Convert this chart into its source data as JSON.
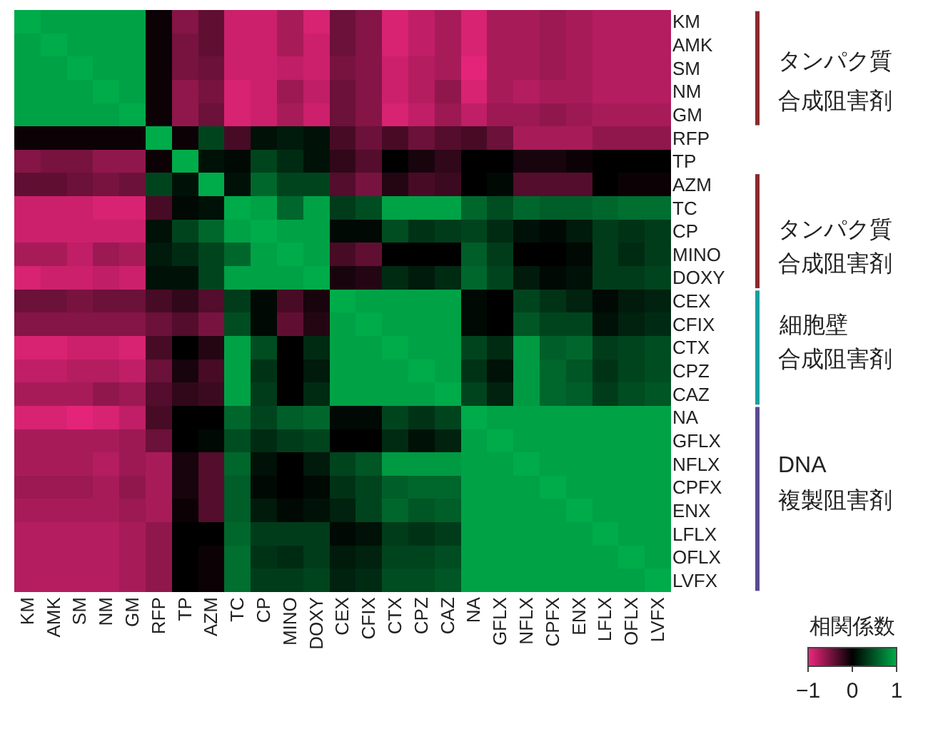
{
  "chart_data": {
    "type": "heatmap",
    "clabel": "相関係数",
    "categories": [
      "KM",
      "AMK",
      "SM",
      "NM",
      "GM",
      "RFP",
      "TP",
      "AZM",
      "TC",
      "CP",
      "MINO",
      "DOXY",
      "CEX",
      "CFIX",
      "CTX",
      "CPZ",
      "CAZ",
      "NA",
      "GFLX",
      "NFLX",
      "CPFX",
      "ENX",
      "LFLX",
      "OFLX",
      "LVFX"
    ],
    "y_categories": [
      "KM",
      "AMK",
      "SM",
      "NM",
      "GM",
      "RFP",
      "TP",
      "AZM",
      "TC",
      "CP",
      "MINO",
      "DOXY",
      "CEX",
      "CFIX",
      "CTX",
      "CPZ",
      "CAZ",
      "NA",
      "GFLX",
      "NFLX",
      "CPFX",
      "ENX",
      "LFLX",
      "OFLX",
      "LVFX"
    ],
    "cells": [
      [
        1,
        0.95,
        0.95,
        0.95,
        0.95,
        -0.05,
        -0.55,
        -0.4,
        -0.85,
        -0.85,
        -0.7,
        -0.9,
        -0.45,
        -0.55,
        -0.9,
        -0.8,
        -0.7,
        -0.9,
        -0.7,
        -0.7,
        -0.65,
        -0.7,
        -0.75,
        -0.75,
        -0.75
      ],
      [
        0.95,
        1,
        0.95,
        0.95,
        0.95,
        -0.05,
        -0.5,
        -0.4,
        -0.85,
        -0.85,
        -0.7,
        -0.85,
        -0.45,
        -0.55,
        -0.9,
        -0.8,
        -0.7,
        -0.9,
        -0.7,
        -0.7,
        -0.65,
        -0.7,
        -0.75,
        -0.75,
        -0.75
      ],
      [
        0.95,
        0.95,
        1,
        0.95,
        0.95,
        -0.05,
        -0.5,
        -0.45,
        -0.85,
        -0.85,
        -0.8,
        -0.85,
        -0.5,
        -0.55,
        -0.85,
        -0.75,
        -0.7,
        -0.95,
        -0.7,
        -0.7,
        -0.65,
        -0.7,
        -0.75,
        -0.75,
        -0.75
      ],
      [
        0.95,
        0.95,
        0.95,
        1,
        0.95,
        -0.05,
        -0.6,
        -0.5,
        -0.9,
        -0.85,
        -0.65,
        -0.8,
        -0.45,
        -0.55,
        -0.85,
        -0.75,
        -0.6,
        -0.9,
        -0.7,
        -0.75,
        -0.7,
        -0.7,
        -0.75,
        -0.75,
        -0.75
      ],
      [
        0.95,
        0.95,
        0.95,
        0.95,
        1,
        -0.05,
        -0.6,
        -0.45,
        -0.9,
        -0.85,
        -0.7,
        -0.85,
        -0.45,
        -0.55,
        -0.9,
        -0.8,
        -0.65,
        -0.8,
        -0.65,
        -0.65,
        -0.6,
        -0.65,
        -0.7,
        -0.7,
        -0.7
      ],
      [
        -0.05,
        -0.05,
        -0.05,
        -0.05,
        -0.05,
        1,
        -0.05,
        0.4,
        -0.3,
        0.1,
        0.15,
        0.1,
        -0.3,
        -0.45,
        -0.3,
        -0.45,
        -0.35,
        -0.3,
        -0.45,
        -0.7,
        -0.7,
        -0.7,
        -0.6,
        -0.6,
        -0.6
      ],
      [
        -0.55,
        -0.5,
        -0.5,
        -0.6,
        -0.6,
        -0.05,
        1,
        0.1,
        0.05,
        0.4,
        0.25,
        0.1,
        -0.2,
        -0.35,
        0,
        -0.1,
        -0.2,
        0,
        0,
        -0.1,
        -0.1,
        -0.05,
        0,
        0,
        0
      ],
      [
        -0.4,
        -0.4,
        -0.45,
        -0.5,
        -0.45,
        0.4,
        0.1,
        1,
        0.1,
        0.6,
        0.4,
        0.4,
        -0.35,
        -0.5,
        -0.15,
        -0.3,
        -0.25,
        0,
        0.05,
        -0.35,
        -0.35,
        -0.35,
        0,
        -0.05,
        -0.05
      ],
      [
        -0.85,
        -0.85,
        -0.85,
        -0.9,
        -0.9,
        -0.3,
        0.05,
        0.1,
        1,
        0.95,
        0.6,
        0.95,
        0.35,
        0.45,
        0.95,
        0.95,
        0.95,
        0.6,
        0.45,
        0.6,
        0.55,
        0.55,
        0.6,
        0.65,
        0.65
      ],
      [
        -0.85,
        -0.85,
        -0.85,
        -0.85,
        -0.85,
        0.1,
        0.4,
        0.6,
        0.95,
        1,
        0.95,
        0.95,
        0.05,
        0.05,
        0.45,
        0.3,
        0.35,
        0.4,
        0.25,
        0.1,
        0.05,
        0.15,
        0.35,
        0.3,
        0.35
      ],
      [
        -0.7,
        -0.7,
        -0.8,
        -0.65,
        -0.7,
        0.15,
        0.25,
        0.4,
        0.6,
        0.95,
        1,
        0.95,
        -0.3,
        -0.4,
        0,
        0,
        0,
        0.55,
        0.35,
        0,
        0,
        0.05,
        0.35,
        0.25,
        0.35
      ],
      [
        -0.9,
        -0.85,
        -0.85,
        -0.8,
        -0.85,
        0.1,
        0.1,
        0.4,
        0.95,
        0.95,
        0.95,
        1,
        -0.1,
        -0.15,
        0.25,
        0.15,
        0.25,
        0.6,
        0.4,
        0.15,
        0.05,
        0.1,
        0.35,
        0.35,
        0.4
      ],
      [
        -0.45,
        -0.45,
        -0.5,
        -0.45,
        -0.45,
        -0.3,
        -0.2,
        -0.35,
        0.35,
        0.05,
        -0.3,
        -0.1,
        1,
        0.95,
        0.95,
        0.95,
        0.95,
        0.05,
        0,
        0.4,
        0.3,
        0.2,
        0.05,
        0.15,
        0.2
      ],
      [
        -0.55,
        -0.55,
        -0.55,
        -0.55,
        -0.55,
        -0.45,
        -0.35,
        -0.5,
        0.45,
        0.05,
        -0.4,
        -0.15,
        0.95,
        1,
        0.95,
        0.95,
        0.95,
        0.05,
        0,
        0.5,
        0.4,
        0.4,
        0.1,
        0.2,
        0.25
      ],
      [
        -0.9,
        -0.9,
        -0.85,
        -0.85,
        -0.9,
        -0.3,
        0,
        -0.15,
        0.95,
        0.45,
        0,
        0.25,
        0.95,
        0.95,
        1,
        0.95,
        0.95,
        0.4,
        0.25,
        0.9,
        0.55,
        0.6,
        0.35,
        0.4,
        0.45
      ],
      [
        -0.8,
        -0.8,
        -0.75,
        -0.75,
        -0.8,
        -0.45,
        -0.1,
        -0.3,
        0.95,
        0.3,
        0,
        0.15,
        0.95,
        0.95,
        0.95,
        1,
        0.95,
        0.3,
        0.1,
        0.9,
        0.6,
        0.5,
        0.3,
        0.4,
        0.45
      ],
      [
        -0.7,
        -0.7,
        -0.7,
        -0.6,
        -0.65,
        -0.35,
        -0.2,
        -0.25,
        0.95,
        0.35,
        0,
        0.25,
        0.95,
        0.95,
        0.95,
        0.95,
        1,
        0.4,
        0.2,
        0.9,
        0.6,
        0.55,
        0.35,
        0.45,
        0.5
      ],
      [
        -0.9,
        -0.9,
        -0.95,
        -0.9,
        -0.8,
        -0.3,
        0,
        0,
        0.6,
        0.4,
        0.55,
        0.6,
        0.05,
        0.05,
        0.4,
        0.3,
        0.4,
        1,
        0.95,
        0.95,
        0.95,
        0.95,
        0.95,
        0.95,
        0.95
      ],
      [
        -0.7,
        -0.7,
        -0.7,
        -0.7,
        -0.65,
        -0.45,
        0,
        0.05,
        0.45,
        0.25,
        0.35,
        0.4,
        0,
        0,
        0.25,
        0.1,
        0.2,
        0.95,
        1,
        0.95,
        0.95,
        0.95,
        0.95,
        0.95,
        0.95
      ],
      [
        -0.7,
        -0.7,
        -0.7,
        -0.75,
        -0.65,
        -0.7,
        -0.1,
        -0.35,
        0.6,
        0.1,
        0,
        0.15,
        0.4,
        0.5,
        0.9,
        0.9,
        0.9,
        0.95,
        0.95,
        1,
        0.95,
        0.95,
        0.95,
        0.95,
        0.95
      ],
      [
        -0.65,
        -0.65,
        -0.65,
        -0.7,
        -0.6,
        -0.7,
        -0.1,
        -0.35,
        0.55,
        0.05,
        0,
        0.05,
        0.3,
        0.4,
        0.55,
        0.6,
        0.6,
        0.95,
        0.95,
        0.95,
        1,
        0.95,
        0.95,
        0.95,
        0.95
      ],
      [
        -0.7,
        -0.7,
        -0.7,
        -0.7,
        -0.65,
        -0.7,
        -0.05,
        -0.35,
        0.55,
        0.15,
        0.05,
        0.1,
        0.2,
        0.4,
        0.6,
        0.5,
        0.55,
        0.95,
        0.95,
        0.95,
        0.95,
        1,
        0.95,
        0.95,
        0.95
      ],
      [
        -0.75,
        -0.75,
        -0.75,
        -0.75,
        -0.7,
        -0.6,
        0,
        0,
        0.6,
        0.35,
        0.35,
        0.35,
        0.05,
        0.1,
        0.35,
        0.3,
        0.35,
        0.95,
        0.95,
        0.95,
        0.95,
        0.95,
        1,
        0.95,
        0.95
      ],
      [
        -0.75,
        -0.75,
        -0.75,
        -0.75,
        -0.7,
        -0.6,
        0,
        -0.05,
        0.65,
        0.3,
        0.25,
        0.35,
        0.15,
        0.2,
        0.4,
        0.4,
        0.45,
        0.95,
        0.95,
        0.95,
        0.95,
        0.95,
        0.95,
        1,
        0.95
      ],
      [
        -0.75,
        -0.75,
        -0.75,
        -0.75,
        -0.7,
        -0.6,
        0,
        -0.05,
        0.65,
        0.35,
        0.35,
        0.4,
        0.2,
        0.25,
        0.45,
        0.45,
        0.5,
        0.95,
        0.95,
        0.95,
        0.95,
        0.95,
        0.95,
        0.95,
        1
      ]
    ],
    "clim": [
      -1,
      1
    ],
    "cticks": [
      {
        "value": -1,
        "label": "−1"
      },
      0,
      1
    ],
    "annotations": [
      "タンパク質",
      "合成阻害剤",
      "タンパク質",
      "合成阻害剤",
      "細胞壁",
      "合成阻害剤",
      "DNA",
      "複製阻害剤"
    ]
  }
}
